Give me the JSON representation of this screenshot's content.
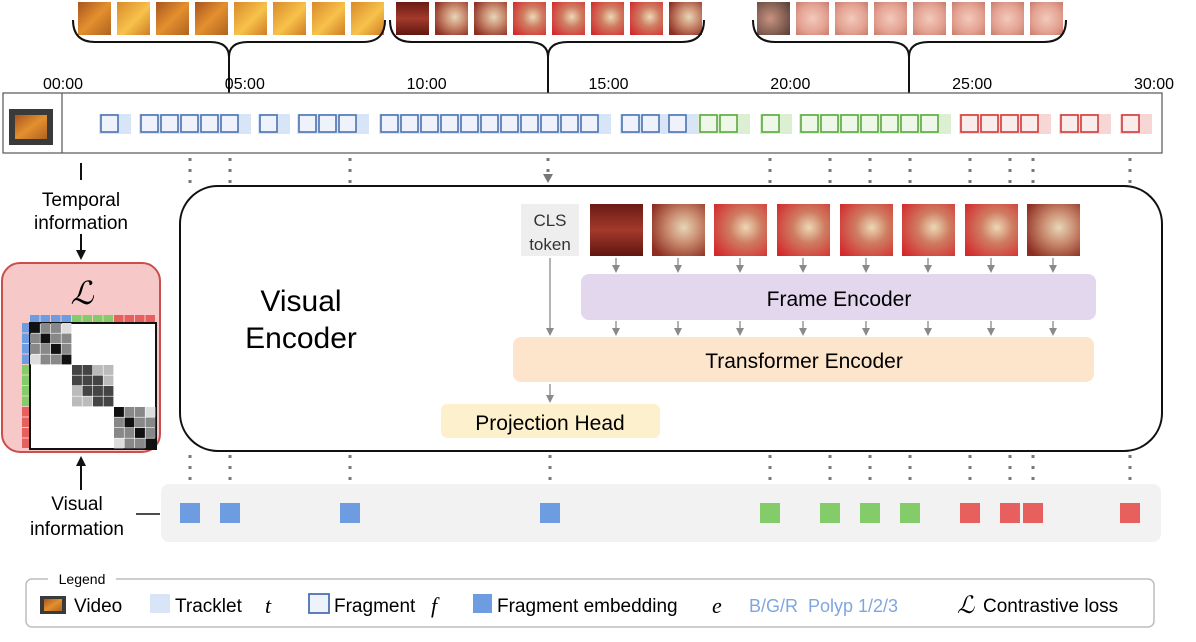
{
  "timeline": {
    "ticks": [
      "00:00",
      "05:00",
      "10:00",
      "15:00",
      "20:00",
      "25:00",
      "30:00"
    ],
    "tick_minutes": [
      0,
      5,
      10,
      15,
      20,
      25,
      30
    ],
    "duration_minutes": 30
  },
  "left": {
    "temporal_label": [
      "Temporal",
      "information"
    ],
    "visual_label": [
      "Visual",
      "information"
    ],
    "loss_symbol": "ℒ"
  },
  "encoder": {
    "title": [
      "Visual",
      "Encoder"
    ],
    "cls_token": [
      "CLS",
      "token"
    ],
    "frame_encoder": "Frame Encoder",
    "transformer_encoder": "Transformer Encoder",
    "projection_head": "Projection Head"
  },
  "legend": {
    "title": "Legend",
    "video": "Video",
    "tracklet": "Tracklet",
    "tracklet_symbol": "t",
    "fragment": "Fragment",
    "fragment_symbol": "f",
    "embedding": "Fragment embedding",
    "embedding_symbol": "e",
    "polyp_key": "B/G/R  Polyp 1/2/3",
    "loss_symbol": "ℒ",
    "loss": "Contrastive loss"
  },
  "colors": {
    "polyp1": "#6d9de0",
    "polyp2": "#84cc6a",
    "polyp3": "#e8605e",
    "polyp1_light": "#d8e5f7",
    "polyp2_light": "#dcefd3",
    "polyp3_light": "#f7d6d6",
    "frame_encoder_bg": "#e3d7ee",
    "transformer_bg": "#fde5cc",
    "projection_bg": "#fdf0cc",
    "loss_box_bg": "#f6c8c8",
    "loss_box_border": "#c94f4f",
    "legend_polyp_text": "#7fa6e0"
  }
}
